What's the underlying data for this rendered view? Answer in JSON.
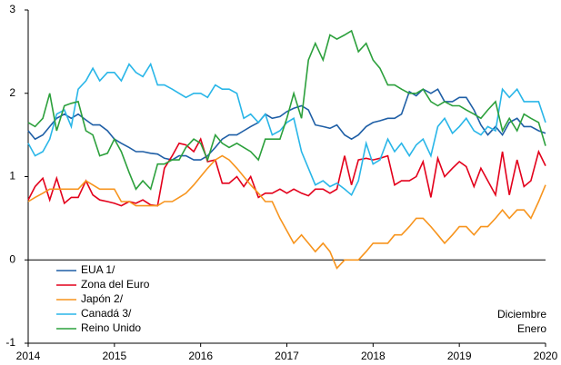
{
  "chart_data": {
    "type": "line",
    "x": [
      2014,
      2014.08,
      2014.17,
      2014.25,
      2014.33,
      2014.42,
      2014.5,
      2014.58,
      2014.67,
      2014.75,
      2014.83,
      2014.92,
      2015,
      2015.08,
      2015.17,
      2015.25,
      2015.33,
      2015.42,
      2015.5,
      2015.58,
      2015.67,
      2015.75,
      2015.83,
      2015.92,
      2016,
      2016.08,
      2016.17,
      2016.25,
      2016.33,
      2016.42,
      2016.5,
      2016.58,
      2016.67,
      2016.75,
      2016.83,
      2016.92,
      2017,
      2017.08,
      2017.17,
      2017.25,
      2017.33,
      2017.42,
      2017.5,
      2017.58,
      2017.67,
      2017.75,
      2017.83,
      2017.92,
      2018,
      2018.08,
      2018.17,
      2018.25,
      2018.33,
      2018.42,
      2018.5,
      2018.58,
      2018.67,
      2018.75,
      2018.83,
      2018.92,
      2019,
      2019.08,
      2019.17,
      2019.25,
      2019.33,
      2019.42,
      2019.5,
      2019.58,
      2019.67,
      2019.75,
      2019.83,
      2019.92,
      2020
    ],
    "series": [
      {
        "name": "EUA 1/",
        "color": "#1f5fa6",
        "values": [
          1.55,
          1.45,
          1.5,
          1.6,
          1.7,
          1.75,
          1.7,
          1.75,
          1.68,
          1.62,
          1.62,
          1.55,
          1.45,
          1.4,
          1.35,
          1.3,
          1.3,
          1.28,
          1.27,
          1.22,
          1.2,
          1.25,
          1.25,
          1.2,
          1.2,
          1.25,
          1.35,
          1.45,
          1.5,
          1.5,
          1.55,
          1.6,
          1.65,
          1.75,
          1.7,
          1.72,
          1.78,
          1.82,
          1.85,
          1.8,
          1.62,
          1.6,
          1.58,
          1.62,
          1.5,
          1.45,
          1.5,
          1.6,
          1.65,
          1.67,
          1.7,
          1.7,
          1.75,
          2.02,
          1.97,
          2.05,
          2.0,
          2.05,
          1.9,
          1.9,
          1.95,
          1.95,
          1.8,
          1.62,
          1.5,
          1.6,
          1.5,
          1.65,
          1.7,
          1.6,
          1.6,
          1.55,
          1.52
        ]
      },
      {
        "name": "Zona del Euro",
        "color": "#e3001b",
        "values": [
          0.72,
          0.88,
          0.98,
          0.72,
          0.98,
          0.68,
          0.75,
          0.75,
          0.95,
          0.78,
          0.72,
          0.7,
          0.68,
          0.65,
          0.7,
          0.68,
          0.72,
          0.66,
          0.65,
          1.1,
          1.25,
          1.4,
          1.38,
          1.3,
          1.45,
          1.18,
          1.2,
          0.92,
          0.92,
          1.0,
          0.88,
          1.0,
          0.75,
          0.8,
          0.8,
          0.85,
          0.8,
          0.85,
          0.8,
          0.77,
          0.85,
          0.85,
          0.8,
          0.85,
          1.25,
          0.9,
          1.2,
          1.22,
          1.2,
          1.22,
          1.25,
          0.9,
          0.95,
          0.95,
          1.0,
          1.18,
          0.75,
          1.22,
          1.0,
          1.1,
          1.18,
          1.12,
          0.88,
          1.1,
          0.95,
          0.78,
          1.3,
          0.78,
          1.2,
          0.88,
          0.95,
          1.3,
          1.13
        ]
      },
      {
        "name": "Japón 2/",
        "color": "#f7941d",
        "values": [
          0.7,
          0.75,
          0.8,
          0.85,
          0.85,
          0.85,
          0.85,
          0.85,
          0.95,
          0.9,
          0.85,
          0.85,
          0.85,
          0.7,
          0.7,
          0.65,
          0.65,
          0.65,
          0.65,
          0.7,
          0.7,
          0.75,
          0.8,
          0.9,
          1.0,
          1.1,
          1.2,
          1.25,
          1.2,
          1.1,
          1.0,
          0.9,
          0.8,
          0.7,
          0.7,
          0.5,
          0.35,
          0.2,
          0.3,
          0.2,
          0.1,
          0.2,
          0.1,
          -0.1,
          0.0,
          0.0,
          0.0,
          0.1,
          0.2,
          0.2,
          0.2,
          0.3,
          0.3,
          0.4,
          0.5,
          0.5,
          0.4,
          0.3,
          0.2,
          0.3,
          0.4,
          0.4,
          0.3,
          0.4,
          0.4,
          0.5,
          0.6,
          0.5,
          0.6,
          0.6,
          0.5,
          0.7,
          0.9
        ]
      },
      {
        "name": "Canadá 3/",
        "color": "#29b6e8",
        "values": [
          1.4,
          1.25,
          1.3,
          1.45,
          1.75,
          1.8,
          1.6,
          2.05,
          2.15,
          2.3,
          2.15,
          2.25,
          2.25,
          2.15,
          2.35,
          2.25,
          2.2,
          2.35,
          2.1,
          2.1,
          2.05,
          2.0,
          1.95,
          2.0,
          2.0,
          1.95,
          2.1,
          2.05,
          2.05,
          2.0,
          1.7,
          1.75,
          1.65,
          1.75,
          1.5,
          1.55,
          1.65,
          1.7,
          1.3,
          1.1,
          0.9,
          0.95,
          0.88,
          0.92,
          0.85,
          0.78,
          0.95,
          1.4,
          1.15,
          1.2,
          1.45,
          1.3,
          1.4,
          1.25,
          1.38,
          1.45,
          1.25,
          1.6,
          1.7,
          1.52,
          1.6,
          1.7,
          1.55,
          1.5,
          1.6,
          1.55,
          2.05,
          1.95,
          2.05,
          1.9,
          1.9,
          1.9,
          1.65
        ]
      },
      {
        "name": "Reino Unido",
        "color": "#2ca03c",
        "values": [
          1.65,
          1.6,
          1.7,
          2.0,
          1.55,
          1.85,
          1.88,
          1.9,
          1.55,
          1.5,
          1.25,
          1.28,
          1.45,
          1.3,
          1.05,
          0.85,
          0.95,
          0.85,
          1.15,
          1.15,
          1.2,
          1.2,
          1.35,
          1.45,
          1.4,
          1.2,
          1.5,
          1.4,
          1.35,
          1.4,
          1.35,
          1.3,
          1.2,
          1.45,
          1.45,
          1.45,
          1.7,
          2.0,
          1.7,
          2.4,
          2.6,
          2.4,
          2.7,
          2.65,
          2.7,
          2.75,
          2.5,
          2.6,
          2.4,
          2.3,
          2.1,
          2.1,
          2.05,
          2.0,
          2.0,
          2.05,
          1.9,
          1.85,
          1.9,
          1.85,
          1.85,
          1.8,
          1.75,
          1.7,
          1.8,
          1.9,
          1.55,
          1.7,
          1.55,
          1.75,
          1.7,
          1.65,
          1.37
        ]
      }
    ],
    "xlim": [
      2014,
      2020
    ],
    "xticks": [
      2014,
      2015,
      2016,
      2017,
      2018,
      2019,
      2020
    ],
    "ylim": [
      -1,
      3
    ],
    "yticks": [
      -1,
      0,
      1,
      2,
      3
    ],
    "annotations": [
      {
        "text": "Diciembre",
        "color": "#000000"
      },
      {
        "text": "Enero",
        "color": "#e3001b"
      }
    ]
  }
}
